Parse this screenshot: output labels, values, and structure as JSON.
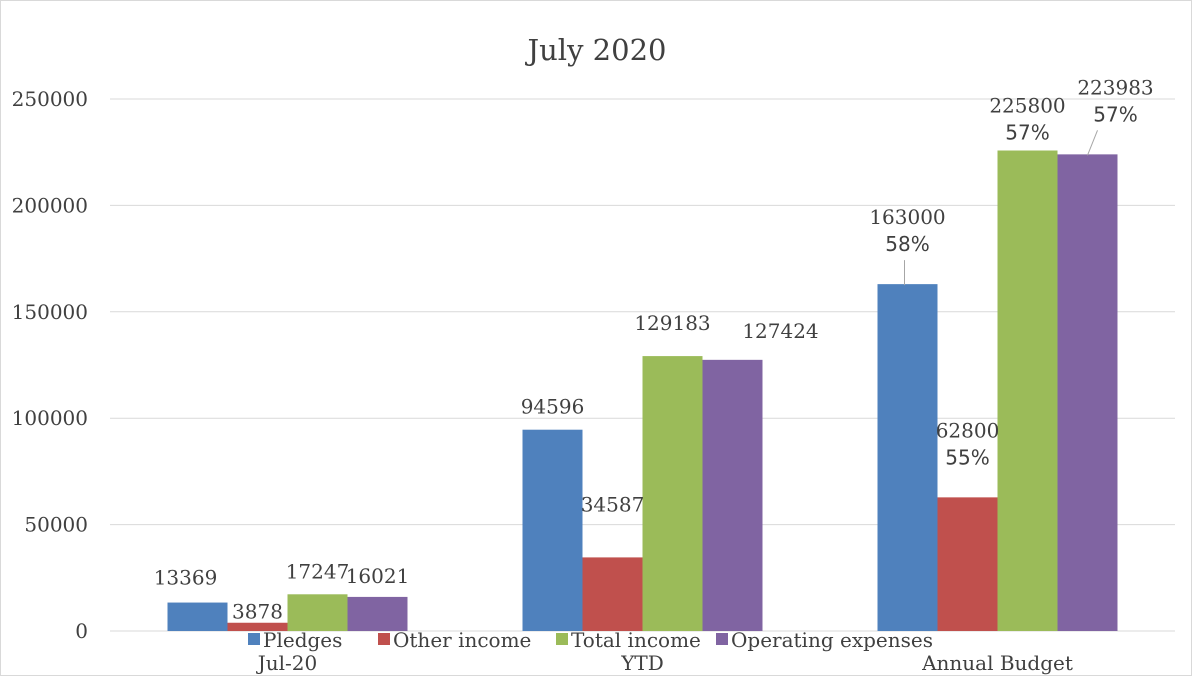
{
  "chart_data": {
    "type": "bar",
    "title": "July 2020",
    "categories": [
      "Jul-20",
      "YTD",
      "Annual Budget"
    ],
    "series": [
      {
        "name": "Pledges",
        "color": "#4f81bd",
        "values": [
          13369,
          94596,
          163000
        ]
      },
      {
        "name": "Other income",
        "color": "#c0504d",
        "values": [
          3878,
          34587,
          62800
        ]
      },
      {
        "name": "Total income",
        "color": "#9bbb59",
        "values": [
          17247,
          129183,
          225800
        ]
      },
      {
        "name": "Operating expenses",
        "color": "#8064a2",
        "values": [
          16021,
          127424,
          223983
        ]
      }
    ],
    "data_labels": [
      [
        "13369",
        "94596",
        "163000"
      ],
      [
        "3878",
        "34587",
        "62800"
      ],
      [
        "17247",
        "129183",
        "225800"
      ],
      [
        "16021",
        "127424",
        "223983"
      ]
    ],
    "percent_labels": [
      [
        null,
        null,
        "58%"
      ],
      [
        null,
        null,
        "55%"
      ],
      [
        null,
        null,
        "57%"
      ],
      [
        null,
        null,
        "57%"
      ]
    ],
    "ylim": [
      0,
      250000
    ],
    "yticks": [
      0,
      50000,
      100000,
      150000,
      200000,
      250000
    ],
    "ytick_labels": [
      "0",
      "50000",
      "100000",
      "150000",
      "200000",
      "250000"
    ],
    "xlabel": "",
    "ylabel": "",
    "grid": true,
    "legend_position": "bottom",
    "colors": {
      "gridline": "#d9d9d9",
      "text": "#404040",
      "border": "#d9d9d9",
      "leader": "#a6a6a6"
    }
  }
}
